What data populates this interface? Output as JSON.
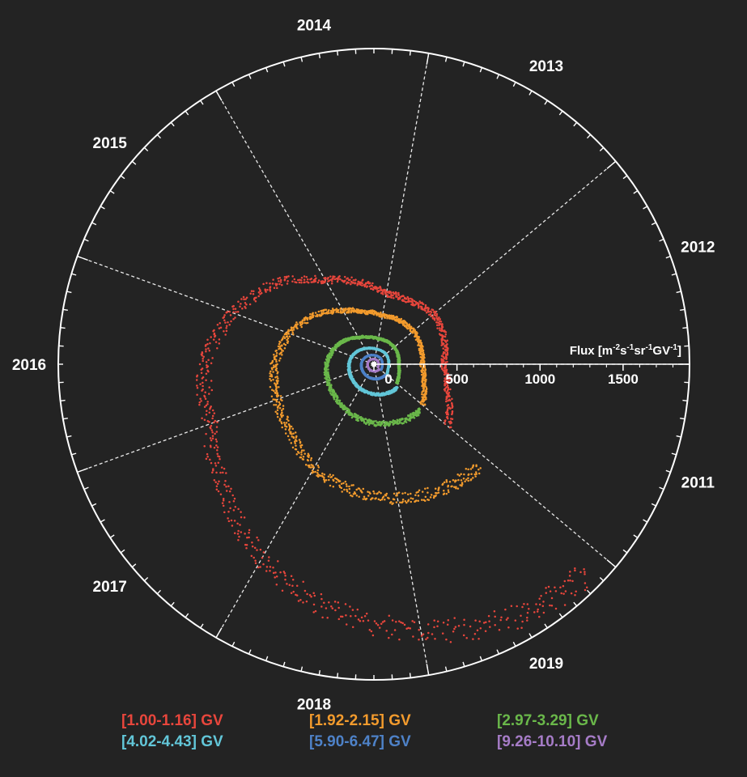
{
  "chart_data": {
    "type": "scatter",
    "subtype": "polar",
    "title": "",
    "radial_axis": {
      "label": "Flux [m-2s-1sr-1GV-1]",
      "label_parts": [
        "Flux [m",
        "-2",
        "s",
        "-1",
        "sr",
        "-1",
        "GV",
        "-1",
        "]"
      ],
      "range": [
        0,
        1900
      ],
      "ticks": [
        0,
        500,
        1000,
        1500
      ],
      "tick_labels": [
        "0",
        "500",
        "1000",
        "1500"
      ]
    },
    "angular_axis": {
      "start_year": 2011,
      "end_year": 2020,
      "start_angle_deg": -40,
      "direction": "counterclockwise",
      "year_labels": [
        "2011",
        "2012",
        "2013",
        "2014",
        "2015",
        "2016",
        "2017",
        "2018",
        "2019"
      ]
    },
    "background": "#232323",
    "grid": true,
    "legend_position": "bottom",
    "series": [
      {
        "name": "[1.00-1.16] GV",
        "color": "#e8463c",
        "t": [
          2011.0,
          2011.5,
          2012.0,
          2012.5,
          2013.0,
          2013.5,
          2014.0,
          2014.5,
          2015.0,
          2015.5,
          2016.0,
          2016.5,
          2017.0,
          2017.5,
          2018.0,
          2018.5,
          2019.0,
          2019.5,
          2019.9
        ],
        "flux": [
          580,
          470,
          420,
          450,
          470,
          440,
          430,
          500,
          580,
          760,
          900,
          1020,
          1050,
          1180,
          1350,
          1500,
          1630,
          1750,
          1800
        ]
      },
      {
        "name": "[1.92-2.15] GV",
        "color": "#f39b2d",
        "t": [
          2011.0,
          2011.5,
          2012.0,
          2012.5,
          2013.0,
          2013.5,
          2014.0,
          2014.5,
          2015.0,
          2015.5,
          2016.0,
          2016.5,
          2017.0,
          2017.5,
          2018.0,
          2018.5,
          2019.0,
          2019.5,
          2019.9
        ],
        "flux": [
          380,
          320,
          290,
          300,
          310,
          305,
          300,
          320,
          370,
          460,
          540,
          600,
          620,
          650,
          720,
          770,
          820,
          860,
          880
        ]
      },
      {
        "name": "[2.97-3.29] GV",
        "color": "#6ab84a",
        "t": [
          2011.0,
          2011.5,
          2012.0,
          2012.5,
          2013.0,
          2013.5,
          2014.0,
          2014.5,
          2015.0,
          2015.5,
          2016.0,
          2016.5,
          2017.0,
          2017.5,
          2018.0,
          2018.5,
          2019.0,
          2019.5,
          2019.9
        ],
        "flux": [
          180,
          160,
          150,
          155,
          160,
          158,
          155,
          165,
          185,
          225,
          260,
          285,
          295,
          305,
          325,
          345,
          365,
          385,
          395
        ]
      },
      {
        "name": "[4.02-4.43] GV",
        "color": "#62c6d8",
        "t": [
          2011.0,
          2011.5,
          2012.0,
          2012.5,
          2013.0,
          2013.5,
          2014.0,
          2014.5,
          2015.0,
          2015.5,
          2016.0,
          2016.5,
          2017.0,
          2017.5,
          2018.0,
          2018.5,
          2019.0,
          2019.5,
          2019.9
        ],
        "flux": [
          100,
          90,
          88,
          92,
          95,
          93,
          92,
          97,
          108,
          125,
          140,
          150,
          155,
          160,
          168,
          175,
          185,
          195,
          200
        ]
      },
      {
        "name": "[5.90-6.47] GV",
        "color": "#4e82c8",
        "t": [
          2011.0,
          2011.5,
          2012.0,
          2012.5,
          2013.0,
          2013.5,
          2014.0,
          2014.5,
          2015.0,
          2015.5,
          2016.0,
          2016.5,
          2017.0,
          2017.5,
          2018.0,
          2018.5,
          2019.0,
          2019.5,
          2019.9
        ],
        "flux": [
          55,
          52,
          50,
          52,
          54,
          53,
          53,
          55,
          60,
          66,
          72,
          76,
          78,
          80,
          83,
          86,
          90,
          93,
          95
        ]
      },
      {
        "name": "[9.26-10.10] GV",
        "color": "#a67cc7",
        "t": [
          2011.0,
          2011.5,
          2012.0,
          2012.5,
          2013.0,
          2013.5,
          2014.0,
          2014.5,
          2015.0,
          2015.5,
          2016.0,
          2016.5,
          2017.0,
          2017.5,
          2018.0,
          2018.5,
          2019.0,
          2019.5,
          2019.9
        ],
        "flux": [
          30,
          29,
          28,
          29,
          30,
          30,
          30,
          31,
          33,
          35,
          37,
          38,
          39,
          40,
          41,
          42,
          43,
          44,
          45
        ]
      }
    ]
  }
}
